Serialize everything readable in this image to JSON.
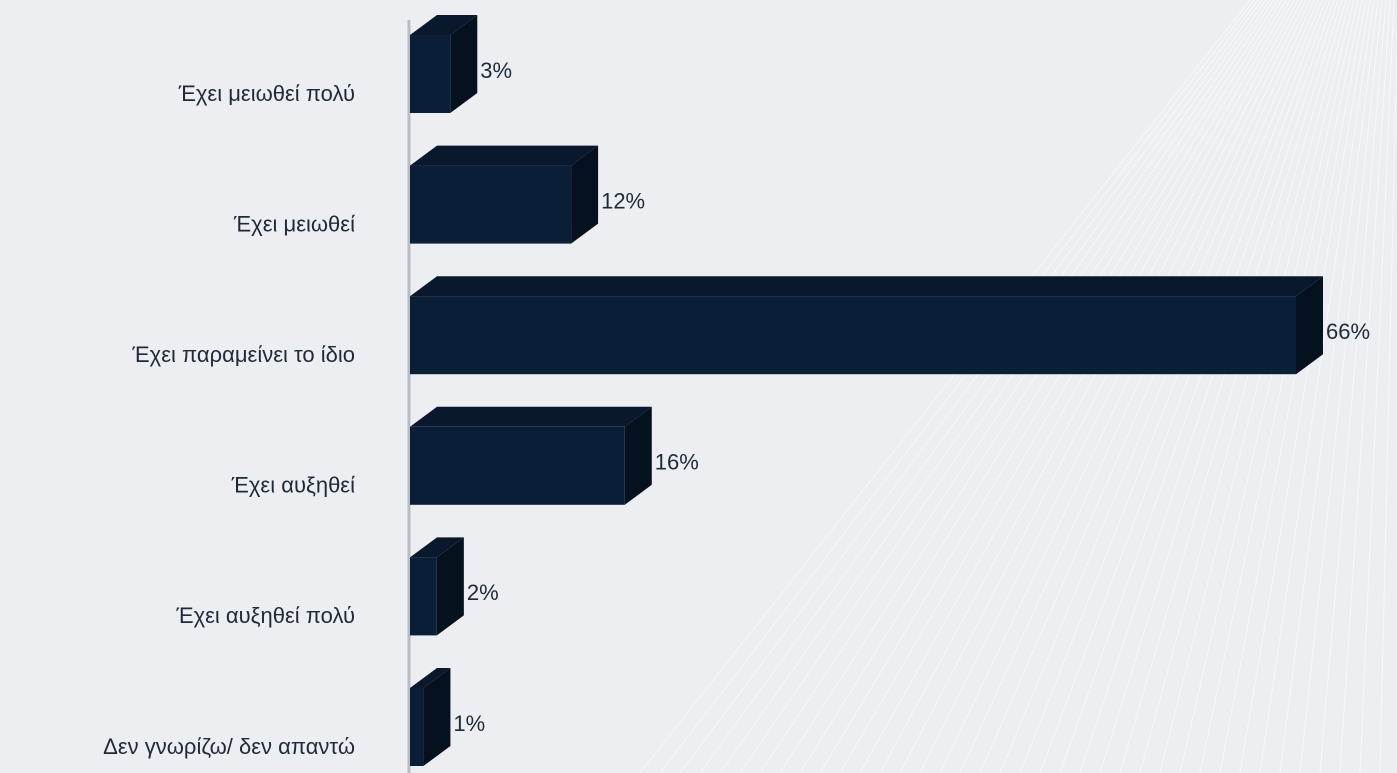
{
  "chart_data": {
    "type": "bar3d_horizontal",
    "categories": [
      "Έχει μειωθεί πολύ",
      "Έχει μειωθεί",
      "Έχει παραμείνει το ίδιο",
      "Έχει αυξηθεί",
      "Έχει αυξηθεί πολύ",
      "Δεν γνωρίζω/ δεν απαντώ"
    ],
    "values": [
      3,
      12,
      66,
      16,
      2,
      1
    ],
    "value_labels": [
      "3%",
      "12%",
      "66%",
      "16%",
      "2%",
      "1%"
    ],
    "color": "#0b1e38"
  }
}
